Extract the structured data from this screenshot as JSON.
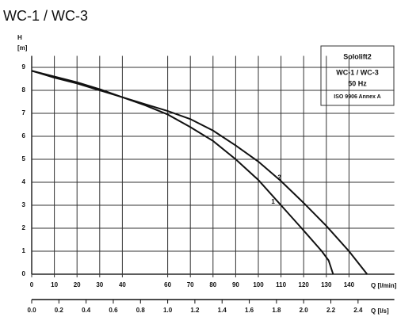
{
  "chart_data": {
    "type": "line",
    "title": "WC-1 / WC-3",
    "y_label": "H",
    "y_unit": "[m]",
    "x_label": "Q [l/min]",
    "x2_label": "Q [l/s]",
    "annotations": [
      "Sololift2",
      "WC-1 / WC-3",
      "50 Hz",
      "ISO 9906 Annex A"
    ],
    "xlim": [
      0,
      160
    ],
    "ylim": [
      0,
      9.5
    ],
    "xticks": [
      0,
      10,
      20,
      30,
      40,
      60,
      70,
      80,
      90,
      100,
      110,
      120,
      130,
      140
    ],
    "yticks": [
      0,
      1,
      2,
      3,
      4,
      5,
      6,
      7,
      8,
      9
    ],
    "x2lim": [
      0,
      2.6667
    ],
    "x2ticks": [
      {
        "value": 0,
        "label": "0.0"
      },
      {
        "value": 0.2,
        "label": "0.2"
      },
      {
        "value": 0.4,
        "label": "0.4"
      },
      {
        "value": 0.6,
        "label": "0.6"
      },
      {
        "value": 0.8,
        "label": "0.8"
      },
      {
        "value": 1,
        "label": "1.0"
      },
      {
        "value": 1.2,
        "label": "1.2"
      },
      {
        "value": 1.4,
        "label": "1.4"
      },
      {
        "value": 1.6,
        "label": "1.6"
      },
      {
        "value": 1.8,
        "label": "1.8"
      },
      {
        "value": 2,
        "label": "2.0"
      },
      {
        "value": 2.2,
        "label": "2.2"
      },
      {
        "value": 2.4,
        "label": "2.4"
      }
    ],
    "grid": true,
    "series": [
      {
        "name": "1",
        "color": "#111111",
        "x": [
          0,
          10,
          20,
          30,
          40,
          50,
          60,
          70,
          80,
          90,
          100,
          110,
          120,
          128,
          131,
          133
        ],
        "values": [
          8.85,
          8.6,
          8.35,
          8.05,
          7.7,
          7.35,
          6.95,
          6.4,
          5.8,
          5.0,
          4.1,
          3.0,
          1.9,
          1.0,
          0.6,
          0
        ]
      },
      {
        "name": "2",
        "color": "#111111",
        "x": [
          0,
          10,
          20,
          30,
          40,
          50,
          60,
          70,
          80,
          90,
          100,
          110,
          120,
          130,
          140,
          148
        ],
        "values": [
          8.85,
          8.55,
          8.3,
          8.0,
          7.7,
          7.4,
          7.1,
          6.75,
          6.25,
          5.6,
          4.9,
          4.05,
          3.1,
          2.1,
          1.0,
          0
        ]
      }
    ]
  }
}
